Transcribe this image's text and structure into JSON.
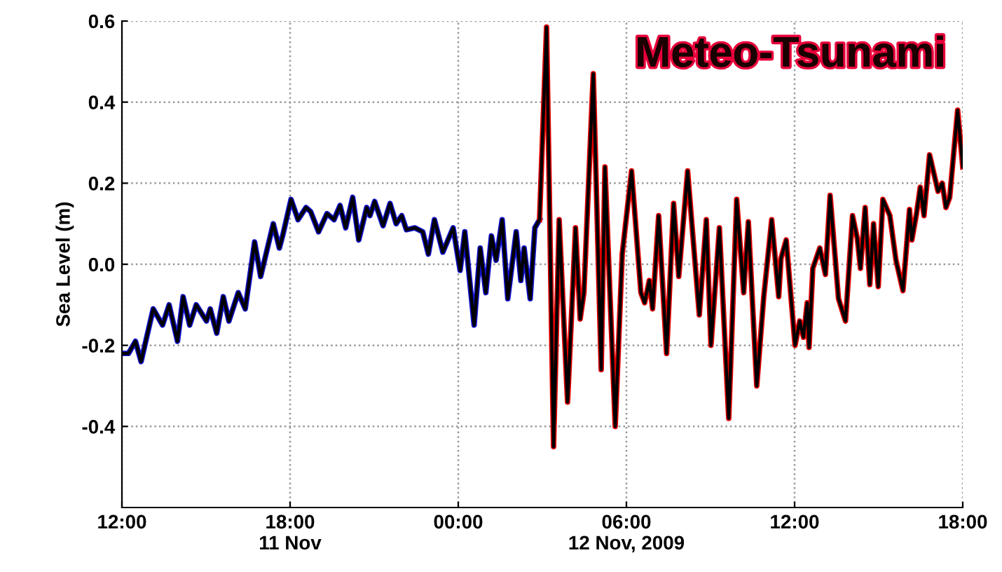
{
  "chart_data": {
    "type": "line",
    "ylabel": "Sea Level (m)",
    "annotations": [
      "Meteo-Tsunami"
    ],
    "xlim": [
      "2009-11-11T12:00",
      "2009-11-12T18:00"
    ],
    "ylim": [
      -0.6,
      0.6
    ],
    "xticks": [
      {
        "value": "2009-11-11T12:00",
        "label": "12:00"
      },
      {
        "value": "2009-11-11T18:00",
        "label": "18:00\n11 Nov"
      },
      {
        "value": "2009-11-12T00:00",
        "label": "00:00"
      },
      {
        "value": "2009-11-12T06:00",
        "label": "06:00\n12 Nov, 2009"
      },
      {
        "value": "2009-11-12T12:00",
        "label": "12:00"
      },
      {
        "value": "2009-11-12T18:00",
        "label": "18:00"
      }
    ],
    "yticks": [
      {
        "value": -0.4,
        "label": "-0.4"
      },
      {
        "value": -0.2,
        "label": "-0.2"
      },
      {
        "value": 0,
        "label": "0.0"
      },
      {
        "value": 0.2,
        "label": "0.2"
      },
      {
        "value": 0.4,
        "label": "0.4"
      },
      {
        "value": 0.6,
        "label": "0.6"
      }
    ],
    "grid": true,
    "marker": "none",
    "line_style": "solid",
    "x": [
      "2009-11-11T12:01",
      "2009-11-11T12:14",
      "2009-11-11T12:29",
      "2009-11-11T12:41",
      "2009-11-11T13:07",
      "2009-11-11T13:27",
      "2009-11-11T13:41",
      "2009-11-11T13:59",
      "2009-11-11T14:11",
      "2009-11-11T14:25",
      "2009-11-11T14:39",
      "2009-11-11T15:01",
      "2009-11-11T15:09",
      "2009-11-11T15:23",
      "2009-11-11T15:37",
      "2009-11-11T15:49",
      "2009-11-11T16:09",
      "2009-11-11T16:24",
      "2009-11-11T16:44",
      "2009-11-11T16:57",
      "2009-11-11T17:24",
      "2009-11-11T17:37",
      "2009-11-11T17:44",
      "2009-11-11T18:02",
      "2009-11-11T18:17",
      "2009-11-11T18:34",
      "2009-11-11T18:44",
      "2009-11-11T19:01",
      "2009-11-11T19:19",
      "2009-11-11T19:34",
      "2009-11-11T19:47",
      "2009-11-11T19:59",
      "2009-11-11T20:14",
      "2009-11-11T20:27",
      "2009-11-11T20:44",
      "2009-11-11T20:51",
      "2009-11-11T21:01",
      "2009-11-11T21:19",
      "2009-11-11T21:34",
      "2009-11-11T21:47",
      "2009-11-11T21:59",
      "2009-11-11T22:09",
      "2009-11-11T22:27",
      "2009-11-11T22:44",
      "2009-11-11T22:56",
      "2009-11-11T23:09",
      "2009-11-11T23:27",
      "2009-11-11T23:49",
      "2009-11-12T00:04",
      "2009-11-12T00:14",
      "2009-11-12T00:34",
      "2009-11-12T00:47",
      "2009-11-12T00:59",
      "2009-11-12T01:11",
      "2009-11-12T01:21",
      "2009-11-12T01:34",
      "2009-11-12T01:46",
      "2009-11-12T02:04",
      "2009-11-12T02:14",
      "2009-11-12T02:21",
      "2009-11-12T02:34",
      "2009-11-12T02:44",
      "2009-11-12T02:54",
      "2009-11-12T03:09",
      "2009-11-12T03:24",
      "2009-11-12T03:36",
      "2009-11-12T03:54",
      "2009-11-12T04:11",
      "2009-11-12T04:21",
      "2009-11-12T04:29",
      "2009-11-12T04:49",
      "2009-11-12T05:06",
      "2009-11-12T05:14",
      "2009-11-12T05:36",
      "2009-11-12T05:51",
      "2009-11-12T06:11",
      "2009-11-12T06:31",
      "2009-11-12T06:39",
      "2009-11-12T06:49",
      "2009-11-12T06:56",
      "2009-11-12T07:09",
      "2009-11-12T07:26",
      "2009-11-12T07:41",
      "2009-11-12T07:52",
      "2009-11-12T08:11",
      "2009-11-12T08:36",
      "2009-11-12T08:51",
      "2009-11-12T09:01",
      "2009-11-12T09:19",
      "2009-11-12T09:39",
      "2009-11-12T09:56",
      "2009-11-12T10:11",
      "2009-11-12T10:21",
      "2009-11-12T10:39",
      "2009-11-12T10:54",
      "2009-11-12T11:11",
      "2009-11-12T11:26",
      "2009-11-12T11:31",
      "2009-11-12T11:42",
      "2009-11-12T12:01",
      "2009-11-12T12:11",
      "2009-11-12T12:19",
      "2009-11-12T12:27",
      "2009-11-12T12:31",
      "2009-11-12T12:39",
      "2009-11-12T12:54",
      "2009-11-12T13:06",
      "2009-11-12T13:16",
      "2009-11-12T13:34",
      "2009-11-12T13:49",
      "2009-11-12T14:04",
      "2009-11-12T14:14",
      "2009-11-12T14:21",
      "2009-11-12T14:31",
      "2009-11-12T14:41",
      "2009-11-12T14:49",
      "2009-11-12T14:59",
      "2009-11-12T15:09",
      "2009-11-12T15:24",
      "2009-11-12T15:37",
      "2009-11-12T15:52",
      "2009-11-12T16:06",
      "2009-11-12T16:11",
      "2009-11-12T16:21",
      "2009-11-12T16:29",
      "2009-11-12T16:37",
      "2009-11-12T16:49",
      "2009-11-12T17:07",
      "2009-11-12T17:16",
      "2009-11-12T17:24",
      "2009-11-12T17:32",
      "2009-11-12T17:49",
      "2009-11-12T18:00"
    ],
    "series": [
      {
        "color": "#1010c8",
        "x": [
          "2009-11-11T12:01",
          "2009-11-11T12:14",
          "2009-11-11T12:29",
          "2009-11-11T12:41",
          "2009-11-11T13:07",
          "2009-11-11T13:27",
          "2009-11-11T13:41",
          "2009-11-11T13:59",
          "2009-11-11T14:11",
          "2009-11-11T14:25",
          "2009-11-11T14:39",
          "2009-11-11T15:01",
          "2009-11-11T15:09",
          "2009-11-11T15:23",
          "2009-11-11T15:37",
          "2009-11-11T15:49",
          "2009-11-11T16:09",
          "2009-11-11T16:24",
          "2009-11-11T16:44",
          "2009-11-11T16:57",
          "2009-11-11T17:24",
          "2009-11-11T17:37",
          "2009-11-11T17:44",
          "2009-11-11T18:02",
          "2009-11-11T18:17",
          "2009-11-11T18:34",
          "2009-11-11T18:44",
          "2009-11-11T19:01",
          "2009-11-11T19:19",
          "2009-11-11T19:34",
          "2009-11-11T19:47",
          "2009-11-11T19:59",
          "2009-11-11T20:14",
          "2009-11-11T20:27",
          "2009-11-11T20:44",
          "2009-11-11T20:51",
          "2009-11-11T21:01",
          "2009-11-11T21:19",
          "2009-11-11T21:34",
          "2009-11-11T21:47",
          "2009-11-11T21:59",
          "2009-11-11T22:09",
          "2009-11-11T22:27",
          "2009-11-11T22:44",
          "2009-11-11T22:56",
          "2009-11-11T23:09",
          "2009-11-11T23:27",
          "2009-11-11T23:49",
          "2009-11-12T00:04",
          "2009-11-12T00:14",
          "2009-11-12T00:34",
          "2009-11-12T00:47",
          "2009-11-12T00:59",
          "2009-11-12T01:11",
          "2009-11-12T01:21",
          "2009-11-12T01:34",
          "2009-11-12T01:46",
          "2009-11-12T02:04",
          "2009-11-12T02:14",
          "2009-11-12T02:21",
          "2009-11-12T02:34",
          "2009-11-12T02:44",
          "2009-11-12T02:54"
        ],
        "values": [
          -0.22,
          -0.22,
          -0.19,
          -0.24,
          -0.11,
          -0.15,
          -0.1,
          -0.19,
          -0.08,
          -0.15,
          -0.1,
          -0.14,
          -0.11,
          -0.17,
          -0.08,
          -0.14,
          -0.07,
          -0.11,
          0.055,
          -0.03,
          0.1,
          0.04,
          0.07,
          0.16,
          0.11,
          0.14,
          0.13,
          0.08,
          0.125,
          0.11,
          0.145,
          0.09,
          0.165,
          0.06,
          0.14,
          0.12,
          0.155,
          0.095,
          0.15,
          0.1,
          0.12,
          0.085,
          0.09,
          0.08,
          0.025,
          0.11,
          0.03,
          0.09,
          -0.015,
          0.08,
          -0.15,
          0.04,
          -0.07,
          0.07,
          0.01,
          0.11,
          -0.085,
          0.08,
          -0.04,
          0.04,
          -0.085,
          0.09,
          0.11
        ]
      },
      {
        "color": "#e00000",
        "x": [
          "2009-11-12T02:54",
          "2009-11-12T03:09",
          "2009-11-12T03:24",
          "2009-11-12T03:36",
          "2009-11-12T03:54",
          "2009-11-12T04:11",
          "2009-11-12T04:21",
          "2009-11-12T04:29",
          "2009-11-12T04:49",
          "2009-11-12T05:06",
          "2009-11-12T05:14",
          "2009-11-12T05:36",
          "2009-11-12T05:51",
          "2009-11-12T06:11",
          "2009-11-12T06:31",
          "2009-11-12T06:39",
          "2009-11-12T06:49",
          "2009-11-12T06:56",
          "2009-11-12T07:09",
          "2009-11-12T07:26",
          "2009-11-12T07:41",
          "2009-11-12T07:52",
          "2009-11-12T08:11",
          "2009-11-12T08:36",
          "2009-11-12T08:51",
          "2009-11-12T09:01",
          "2009-11-12T09:19",
          "2009-11-12T09:39",
          "2009-11-12T09:56",
          "2009-11-12T10:11",
          "2009-11-12T10:21",
          "2009-11-12T10:39",
          "2009-11-12T10:54",
          "2009-11-12T11:11",
          "2009-11-12T11:26",
          "2009-11-12T11:31",
          "2009-11-12T11:42",
          "2009-11-12T12:01",
          "2009-11-12T12:11",
          "2009-11-12T12:19",
          "2009-11-12T12:27",
          "2009-11-12T12:31",
          "2009-11-12T12:39",
          "2009-11-12T12:54",
          "2009-11-12T13:06",
          "2009-11-12T13:16",
          "2009-11-12T13:34",
          "2009-11-12T13:49",
          "2009-11-12T14:04",
          "2009-11-12T14:14",
          "2009-11-12T14:21",
          "2009-11-12T14:31",
          "2009-11-12T14:41",
          "2009-11-12T14:49",
          "2009-11-12T14:59",
          "2009-11-12T15:09",
          "2009-11-12T15:24",
          "2009-11-12T15:37",
          "2009-11-12T15:52",
          "2009-11-12T16:06",
          "2009-11-12T16:11",
          "2009-11-12T16:21",
          "2009-11-12T16:29",
          "2009-11-12T16:37",
          "2009-11-12T16:49",
          "2009-11-12T17:07",
          "2009-11-12T17:16",
          "2009-11-12T17:24",
          "2009-11-12T17:32",
          "2009-11-12T17:49",
          "2009-11-12T18:00"
        ],
        "values": [
          0.11,
          0.585,
          -0.45,
          0.11,
          -0.34,
          0.09,
          -0.135,
          -0.07,
          0.47,
          -0.26,
          0.24,
          -0.4,
          0.025,
          0.23,
          -0.07,
          -0.095,
          -0.04,
          -0.11,
          0.12,
          -0.22,
          0.15,
          -0.03,
          0.23,
          -0.125,
          0.11,
          -0.2,
          0.09,
          -0.38,
          0.16,
          -0.07,
          0.105,
          -0.3,
          -0.08,
          0.11,
          -0.08,
          0.015,
          0.06,
          -0.2,
          -0.14,
          -0.18,
          -0.095,
          -0.205,
          -0.01,
          0.04,
          -0.025,
          0.17,
          -0.085,
          -0.14,
          0.12,
          0.065,
          -0.01,
          0.14,
          -0.05,
          0.1,
          -0.055,
          0.16,
          0.12,
          0.01,
          -0.065,
          0.135,
          0.06,
          0.125,
          0.19,
          0.12,
          0.27,
          0.18,
          0.2,
          0.14,
          0.165,
          0.38,
          0.24
        ]
      },
      {
        "color": "#000000",
        "values": [
          -0.22,
          -0.22,
          -0.19,
          -0.24,
          -0.11,
          -0.15,
          -0.1,
          -0.19,
          -0.08,
          -0.15,
          -0.1,
          -0.14,
          -0.11,
          -0.17,
          -0.08,
          -0.14,
          -0.07,
          -0.11,
          0.055,
          -0.03,
          0.1,
          0.04,
          0.07,
          0.16,
          0.11,
          0.14,
          0.13,
          0.08,
          0.125,
          0.11,
          0.145,
          0.09,
          0.165,
          0.06,
          0.14,
          0.12,
          0.155,
          0.095,
          0.15,
          0.1,
          0.12,
          0.085,
          0.09,
          0.08,
          0.025,
          0.11,
          0.03,
          0.09,
          -0.015,
          0.08,
          -0.15,
          0.04,
          -0.07,
          0.07,
          0.01,
          0.11,
          -0.085,
          0.08,
          -0.04,
          0.04,
          -0.085,
          0.09,
          0.11,
          0.585,
          -0.45,
          0.11,
          -0.34,
          0.09,
          -0.135,
          -0.07,
          0.47,
          -0.26,
          0.24,
          -0.4,
          0.025,
          0.23,
          -0.07,
          -0.095,
          -0.04,
          -0.11,
          0.12,
          -0.22,
          0.15,
          -0.03,
          0.23,
          -0.125,
          0.11,
          -0.2,
          0.09,
          -0.38,
          0.16,
          -0.07,
          0.105,
          -0.3,
          -0.08,
          0.11,
          -0.08,
          0.015,
          0.06,
          -0.2,
          -0.14,
          -0.18,
          -0.095,
          -0.205,
          -0.01,
          0.04,
          -0.025,
          0.17,
          -0.085,
          -0.14,
          0.12,
          0.065,
          -0.01,
          0.14,
          -0.05,
          0.1,
          -0.055,
          0.16,
          0.12,
          0.01,
          -0.065,
          0.135,
          0.06,
          0.125,
          0.19,
          0.12,
          0.27,
          0.18,
          0.2,
          0.14,
          0.165,
          0.38,
          0.24
        ]
      }
    ]
  }
}
